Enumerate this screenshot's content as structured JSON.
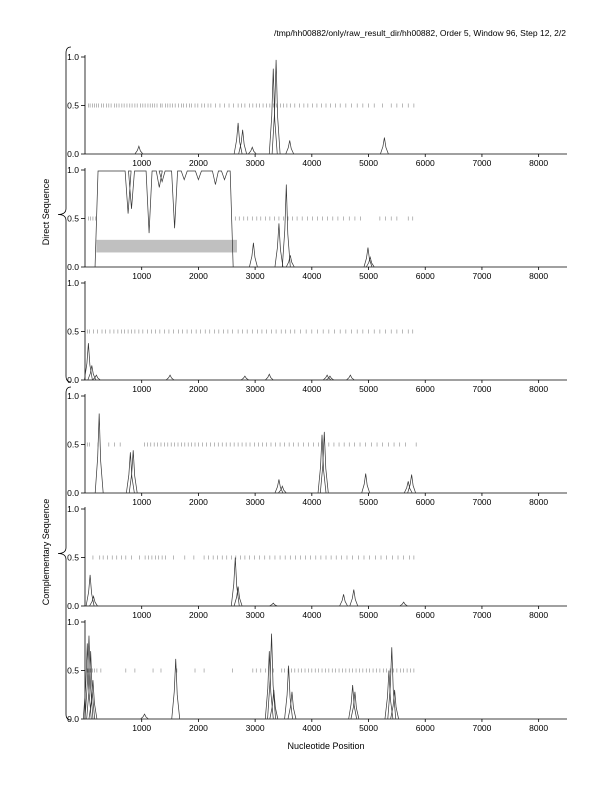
{
  "header": {
    "title": "/tmp/hh00882/only/raw_result_dir/hh00882, Order 5, Window 96, Step 12, 2/2"
  },
  "xlabel": "Nucleotide Position",
  "group_labels": {
    "direct": "Direct Sequence",
    "complementary": "Complementary Sequence"
  },
  "chart_data": {
    "type": "line",
    "title": "/tmp/hh00882/only/raw_result_dir/hh00882, Order 5, Window 96, Step 12, 2/2",
    "xlabel": "Nucleotide Position",
    "xlim": [
      0,
      8500
    ],
    "ylim": [
      0,
      1
    ],
    "x_ticks": [
      1000,
      2000,
      3000,
      4000,
      5000,
      6000,
      7000,
      8000
    ],
    "x_tick_labels": [
      "1000",
      "2000",
      "3000",
      "4000",
      "5000",
      "6000",
      "7000",
      "8000"
    ],
    "y_ticks": [
      0,
      0.5,
      1
    ],
    "y_tick_labels": [
      "0.0",
      "0.5",
      "1.0"
    ],
    "grid": false,
    "panels": [
      {
        "group": "direct",
        "frame": 0,
        "peaks": [
          [
            950,
            0.08
          ],
          [
            2700,
            0.32
          ],
          [
            2780,
            0.25
          ],
          [
            2950,
            0.07
          ],
          [
            3320,
            0.88
          ],
          [
            3370,
            0.97
          ],
          [
            3610,
            0.14
          ],
          [
            5280,
            0.17
          ]
        ],
        "stop_ticks": [
          60,
          90,
          130,
          170,
          200,
          240,
          290,
          330,
          380,
          420,
          460,
          520,
          560,
          600,
          650,
          690,
          740,
          790,
          830,
          880,
          920,
          980,
          1020,
          1060,
          1110,
          1150,
          1190,
          1230,
          1270,
          1330,
          1360,
          1420,
          1460,
          1500,
          1540,
          1590,
          1650,
          1700,
          1740,
          1790,
          1840,
          1880,
          1940,
          1990,
          2060,
          2110,
          2170,
          2220,
          2300,
          2380,
          2460,
          2540,
          2620,
          2700,
          2760,
          2820,
          2900,
          2960,
          3020,
          3080,
          3140,
          3200,
          3260,
          3320,
          3380,
          3450,
          3500,
          3560,
          3620,
          3700,
          3780,
          3860,
          3930,
          4010,
          4090,
          4170,
          4250,
          4330,
          4420,
          4500,
          4600,
          4700,
          4800,
          4900,
          5000,
          5100,
          5250,
          5400,
          5500,
          5600,
          5700,
          5800
        ],
        "orf_box": null
      },
      {
        "group": "direct",
        "frame": 1,
        "peaks": [
          [
            2970,
            0.25
          ],
          [
            3420,
            0.45
          ],
          [
            3550,
            0.85
          ],
          [
            3620,
            0.12
          ],
          [
            4990,
            0.2
          ],
          [
            5030,
            0.1
          ]
        ],
        "stop_ticks": [
          60,
          100,
          140,
          190,
          2650,
          2720,
          2800,
          2870,
          2950,
          3030,
          3100,
          3180,
          3260,
          3340,
          3420,
          3500,
          3580,
          3660,
          3740,
          3830,
          3920,
          4010,
          4100,
          4190,
          4280,
          4370,
          4460,
          4560,
          4660,
          4760,
          4860,
          5200,
          5300,
          5400,
          5500,
          5700,
          5780
        ],
        "coding": {
          "start": 230,
          "end": 2560,
          "dips": [
            [
              760,
              0.55
            ],
            [
              820,
              0.6
            ],
            [
              1130,
              0.35
            ],
            [
              1310,
              0.82
            ],
            [
              1360,
              0.88
            ],
            [
              1580,
              0.4
            ],
            [
              1750,
              0.9
            ],
            [
              2000,
              0.9
            ],
            [
              2300,
              0.85
            ],
            [
              2460,
              0.9
            ]
          ]
        },
        "orf_box": {
          "start": 200,
          "end": 2680,
          "y_low": 0.15,
          "y_high": 0.28
        }
      },
      {
        "group": "direct",
        "frame": 2,
        "peaks": [
          [
            60,
            0.38
          ],
          [
            120,
            0.15
          ],
          [
            200,
            0.05
          ],
          [
            1500,
            0.05
          ],
          [
            2820,
            0.04
          ],
          [
            3250,
            0.06
          ],
          [
            4270,
            0.05
          ],
          [
            4320,
            0.04
          ],
          [
            4680,
            0.05
          ]
        ],
        "stop_ticks": [
          40,
          80,
          150,
          220,
          300,
          360,
          440,
          510,
          580,
          640,
          700,
          760,
          820,
          880,
          950,
          1020,
          1100,
          1170,
          1240,
          1320,
          1400,
          1480,
          1560,
          1650,
          1720,
          1800,
          1880,
          1960,
          2040,
          2120,
          2200,
          2280,
          2360,
          2440,
          2520,
          2600,
          2700,
          2780,
          2860,
          2950,
          3040,
          3120,
          3200,
          3290,
          3370,
          3460,
          3540,
          3620,
          3700,
          3800,
          3900,
          4000,
          4100,
          4200,
          4300,
          4400,
          4500,
          4600,
          4700,
          4800,
          4900,
          5000,
          5100,
          5200,
          5300,
          5400,
          5500,
          5600,
          5700,
          5780
        ],
        "orf_box": null
      },
      {
        "group": "complementary",
        "frame": 0,
        "peaks": [
          [
            250,
            0.82
          ],
          [
            800,
            0.42
          ],
          [
            850,
            0.44
          ],
          [
            3420,
            0.14
          ],
          [
            3480,
            0.07
          ],
          [
            4180,
            0.6
          ],
          [
            4220,
            0.63
          ],
          [
            4950,
            0.2
          ],
          [
            5700,
            0.12
          ],
          [
            5760,
            0.19
          ]
        ],
        "stop_ticks": [
          40,
          80,
          230,
          420,
          520,
          620,
          1050,
          1100,
          1160,
          1220,
          1280,
          1340,
          1400,
          1460,
          1520,
          1580,
          1640,
          1700,
          1760,
          1820,
          1880,
          1940,
          2000,
          2070,
          2140,
          2210,
          2280,
          2350,
          2420,
          2490,
          2560,
          2630,
          2700,
          2770,
          2840,
          2910,
          2990,
          3060,
          3130,
          3200,
          3280,
          3360,
          3440,
          3520,
          3600,
          3680,
          3760,
          3850,
          3940,
          4030,
          4120,
          4210,
          4300,
          4390,
          4480,
          4570,
          4660,
          4750,
          4850,
          4950,
          5050,
          5150,
          5250,
          5350,
          5450,
          5550,
          5650,
          5840
        ],
        "orf_box": null
      },
      {
        "group": "complementary",
        "frame": 1,
        "peaks": [
          [
            90,
            0.32
          ],
          [
            150,
            0.1
          ],
          [
            2650,
            0.5
          ],
          [
            2700,
            0.2
          ],
          [
            3320,
            0.03
          ],
          [
            4560,
            0.12
          ],
          [
            4740,
            0.17
          ],
          [
            5620,
            0.04
          ]
        ],
        "stop_ticks": [
          140,
          260,
          320,
          400,
          480,
          560,
          640,
          720,
          820,
          960,
          1060,
          1120,
          1180,
          1240,
          1300,
          1360,
          1420,
          1560,
          1760,
          1920,
          2100,
          2180,
          2260,
          2340,
          2420,
          2500,
          2580,
          2660,
          2740,
          2820,
          2900,
          2990,
          3080,
          3170,
          3260,
          3350,
          3440,
          3530,
          3620,
          3710,
          3800,
          3890,
          3980,
          4070,
          4160,
          4250,
          4340,
          4430,
          4520,
          4620,
          4720,
          4820,
          4920,
          5020,
          5120,
          5220,
          5320,
          5420,
          5520,
          5620,
          5720,
          5800
        ],
        "orf_box": null
      },
      {
        "group": "complementary",
        "frame": 2,
        "peaks": [
          [
            40,
            0.78
          ],
          [
            70,
            0.86
          ],
          [
            100,
            0.7
          ],
          [
            140,
            0.4
          ],
          [
            1050,
            0.05
          ],
          [
            1600,
            0.62
          ],
          [
            3250,
            0.7
          ],
          [
            3290,
            0.88
          ],
          [
            3330,
            0.3
          ],
          [
            3590,
            0.55
          ],
          [
            3650,
            0.28
          ],
          [
            4720,
            0.35
          ],
          [
            4760,
            0.28
          ],
          [
            5360,
            0.5
          ],
          [
            5410,
            0.74
          ],
          [
            5460,
            0.3
          ]
        ],
        "stop_ticks": [
          40,
          70,
          100,
          130,
          170,
          210,
          280,
          720,
          880,
          1200,
          1340,
          1620,
          1940,
          2100,
          2600,
          2960,
          3020,
          3100,
          3180,
          3320,
          3470,
          3520,
          3580,
          3640,
          3700,
          3760,
          3820,
          3880,
          3940,
          4000,
          4060,
          4120,
          4180,
          4240,
          4300,
          4360,
          4420,
          4480,
          4540,
          4600,
          4660,
          4720,
          4780,
          4840,
          4900,
          4960,
          5020,
          5080,
          5140,
          5200,
          5260,
          5320,
          5380,
          5440,
          5500,
          5560,
          5620,
          5680,
          5740,
          5800
        ],
        "orf_box": null
      }
    ]
  }
}
